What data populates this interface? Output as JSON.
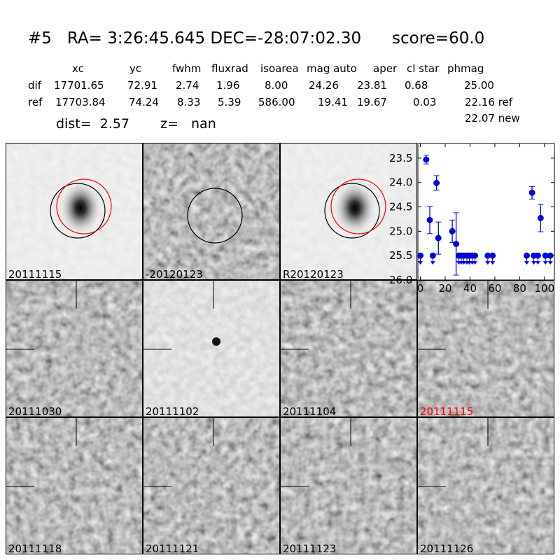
{
  "header": {
    "title": "#5   RA= 3:26:45.645 DEC=-28:07:02.30      score=60.0",
    "columns": [
      "xc",
      "yc",
      "fwhm",
      "fluxrad",
      "isoarea",
      "mag auto",
      "aper",
      "cl star",
      "phmag"
    ],
    "rows": [
      {
        "label": "dif",
        "values": [
          "17701.65",
          "72.91",
          "2.74",
          "1.96",
          "8.00",
          "24.26",
          "23.81",
          "0.68",
          "25.00"
        ]
      },
      {
        "label": "ref",
        "values": [
          "17703.84",
          "74.24",
          "8.33",
          "5.39",
          "586.00",
          "19.41",
          "19.67",
          "0.03",
          "22.16 ref"
        ]
      }
    ],
    "new_mag": "22.07 new",
    "dist": "dist=  2.57",
    "z": "z=   nan"
  },
  "panels": [
    {
      "label": "20111115",
      "type": "galaxy",
      "label_color": "#000000"
    },
    {
      "label": "-20120123",
      "type": "diff",
      "label_color": "#000000"
    },
    {
      "label": "R20120123",
      "type": "galaxy",
      "label_color": "#000000"
    },
    {
      "label": "20111030",
      "type": "noise",
      "label_color": "#000000"
    },
    {
      "label": "20111102",
      "type": "light",
      "label_color": "#000000"
    },
    {
      "label": "20111104",
      "type": "noise",
      "label_color": "#000000"
    },
    {
      "label": "20111115",
      "type": "noise",
      "label_color": "#ff0000"
    },
    {
      "label": "20111118",
      "type": "noise",
      "label_color": "#000000"
    },
    {
      "label": "20111121",
      "type": "noise",
      "label_color": "#000000"
    },
    {
      "label": "20111123",
      "type": "noise",
      "label_color": "#000000"
    },
    {
      "label": "20111126",
      "type": "noise",
      "label_color": "#000000"
    }
  ],
  "chart_data": {
    "type": "scatter",
    "y_inverted": true,
    "xlim": [
      -2,
      108
    ],
    "ylim": [
      26.0,
      23.2
    ],
    "xticks": [
      "0",
      "20",
      "40",
      "60",
      "80",
      "100"
    ],
    "yticks": [
      "23.5",
      "24.0",
      "24.5",
      "25.0",
      "25.5",
      "26.0"
    ],
    "color": "#0000ff",
    "detections": [
      {
        "x": 4.7,
        "y": 23.53,
        "err": 0.09
      },
      {
        "x": 7.6,
        "y": 24.77,
        "err": 0.28
      },
      {
        "x": 13.0,
        "y": 24.01,
        "err": 0.15
      },
      {
        "x": 14.5,
        "y": 25.14,
        "err": 0.33
      },
      {
        "x": 25.7,
        "y": 25.0,
        "err": 0.23
      },
      {
        "x": 28.8,
        "y": 25.26,
        "err": 0.64
      },
      {
        "x": 90.0,
        "y": 24.21,
        "err": 0.13
      },
      {
        "x": 96.9,
        "y": 24.73,
        "err": 0.28
      }
    ],
    "upper_limits": [
      {
        "x": 0,
        "y": 25.5
      },
      {
        "x": 10,
        "y": 25.5
      },
      {
        "x": 31,
        "y": 25.5
      },
      {
        "x": 33,
        "y": 25.5
      },
      {
        "x": 35,
        "y": 25.5
      },
      {
        "x": 37.5,
        "y": 25.5
      },
      {
        "x": 39.5,
        "y": 25.5
      },
      {
        "x": 41.8,
        "y": 25.5
      },
      {
        "x": 44,
        "y": 25.5
      },
      {
        "x": 54.3,
        "y": 25.5
      },
      {
        "x": 58.2,
        "y": 25.5
      },
      {
        "x": 85.7,
        "y": 25.5
      },
      {
        "x": 91.4,
        "y": 25.5
      },
      {
        "x": 94.7,
        "y": 25.5
      },
      {
        "x": 100.8,
        "y": 25.5
      },
      {
        "x": 104.7,
        "y": 25.5
      }
    ]
  }
}
